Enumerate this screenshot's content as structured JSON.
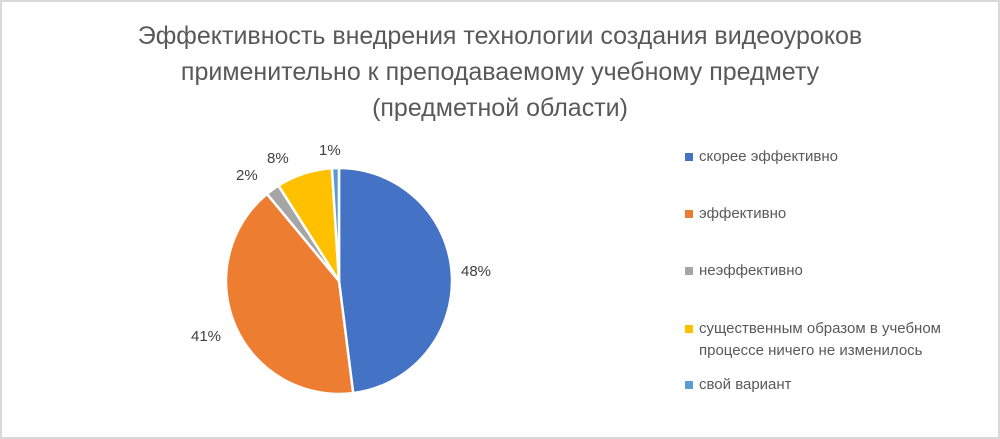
{
  "chart_data": {
    "type": "pie",
    "title": "Эффективность внедрения технологии создания видеоуроков применительно к преподаваемому учебному предмету (предметной области)",
    "title_lines": [
      "Эффективность внедрения технологии создания видеоуроков",
      "применительно к преподаваемому учебному предмету",
      "(предметной области)"
    ],
    "categories": [
      "скорее эффективно",
      "эффективно",
      "неэффективно",
      "существенным образом в учебном процессе ничего не изменилось",
      "свой вариант"
    ],
    "values": [
      48,
      41,
      2,
      8,
      1
    ],
    "labels": [
      "48%",
      "41%",
      "2%",
      "8%",
      "1%"
    ],
    "colors": [
      "#4472c4",
      "#ed7d31",
      "#a5a5a5",
      "#ffc000",
      "#5b9bd5"
    ],
    "legend_position": "right",
    "unit": "%"
  },
  "legend": {
    "items": [
      {
        "lines": [
          "скорее эффективно"
        ],
        "color": "#4472c4"
      },
      {
        "lines": [
          "эффективно"
        ],
        "color": "#ed7d31"
      },
      {
        "lines": [
          "неэффективно"
        ],
        "color": "#a5a5a5"
      },
      {
        "lines": [
          "существенным образом в учебном",
          "процессе ничего не изменилось"
        ],
        "color": "#ffc000"
      },
      {
        "lines": [
          "свой вариант"
        ],
        "color": "#5b9bd5"
      }
    ]
  }
}
